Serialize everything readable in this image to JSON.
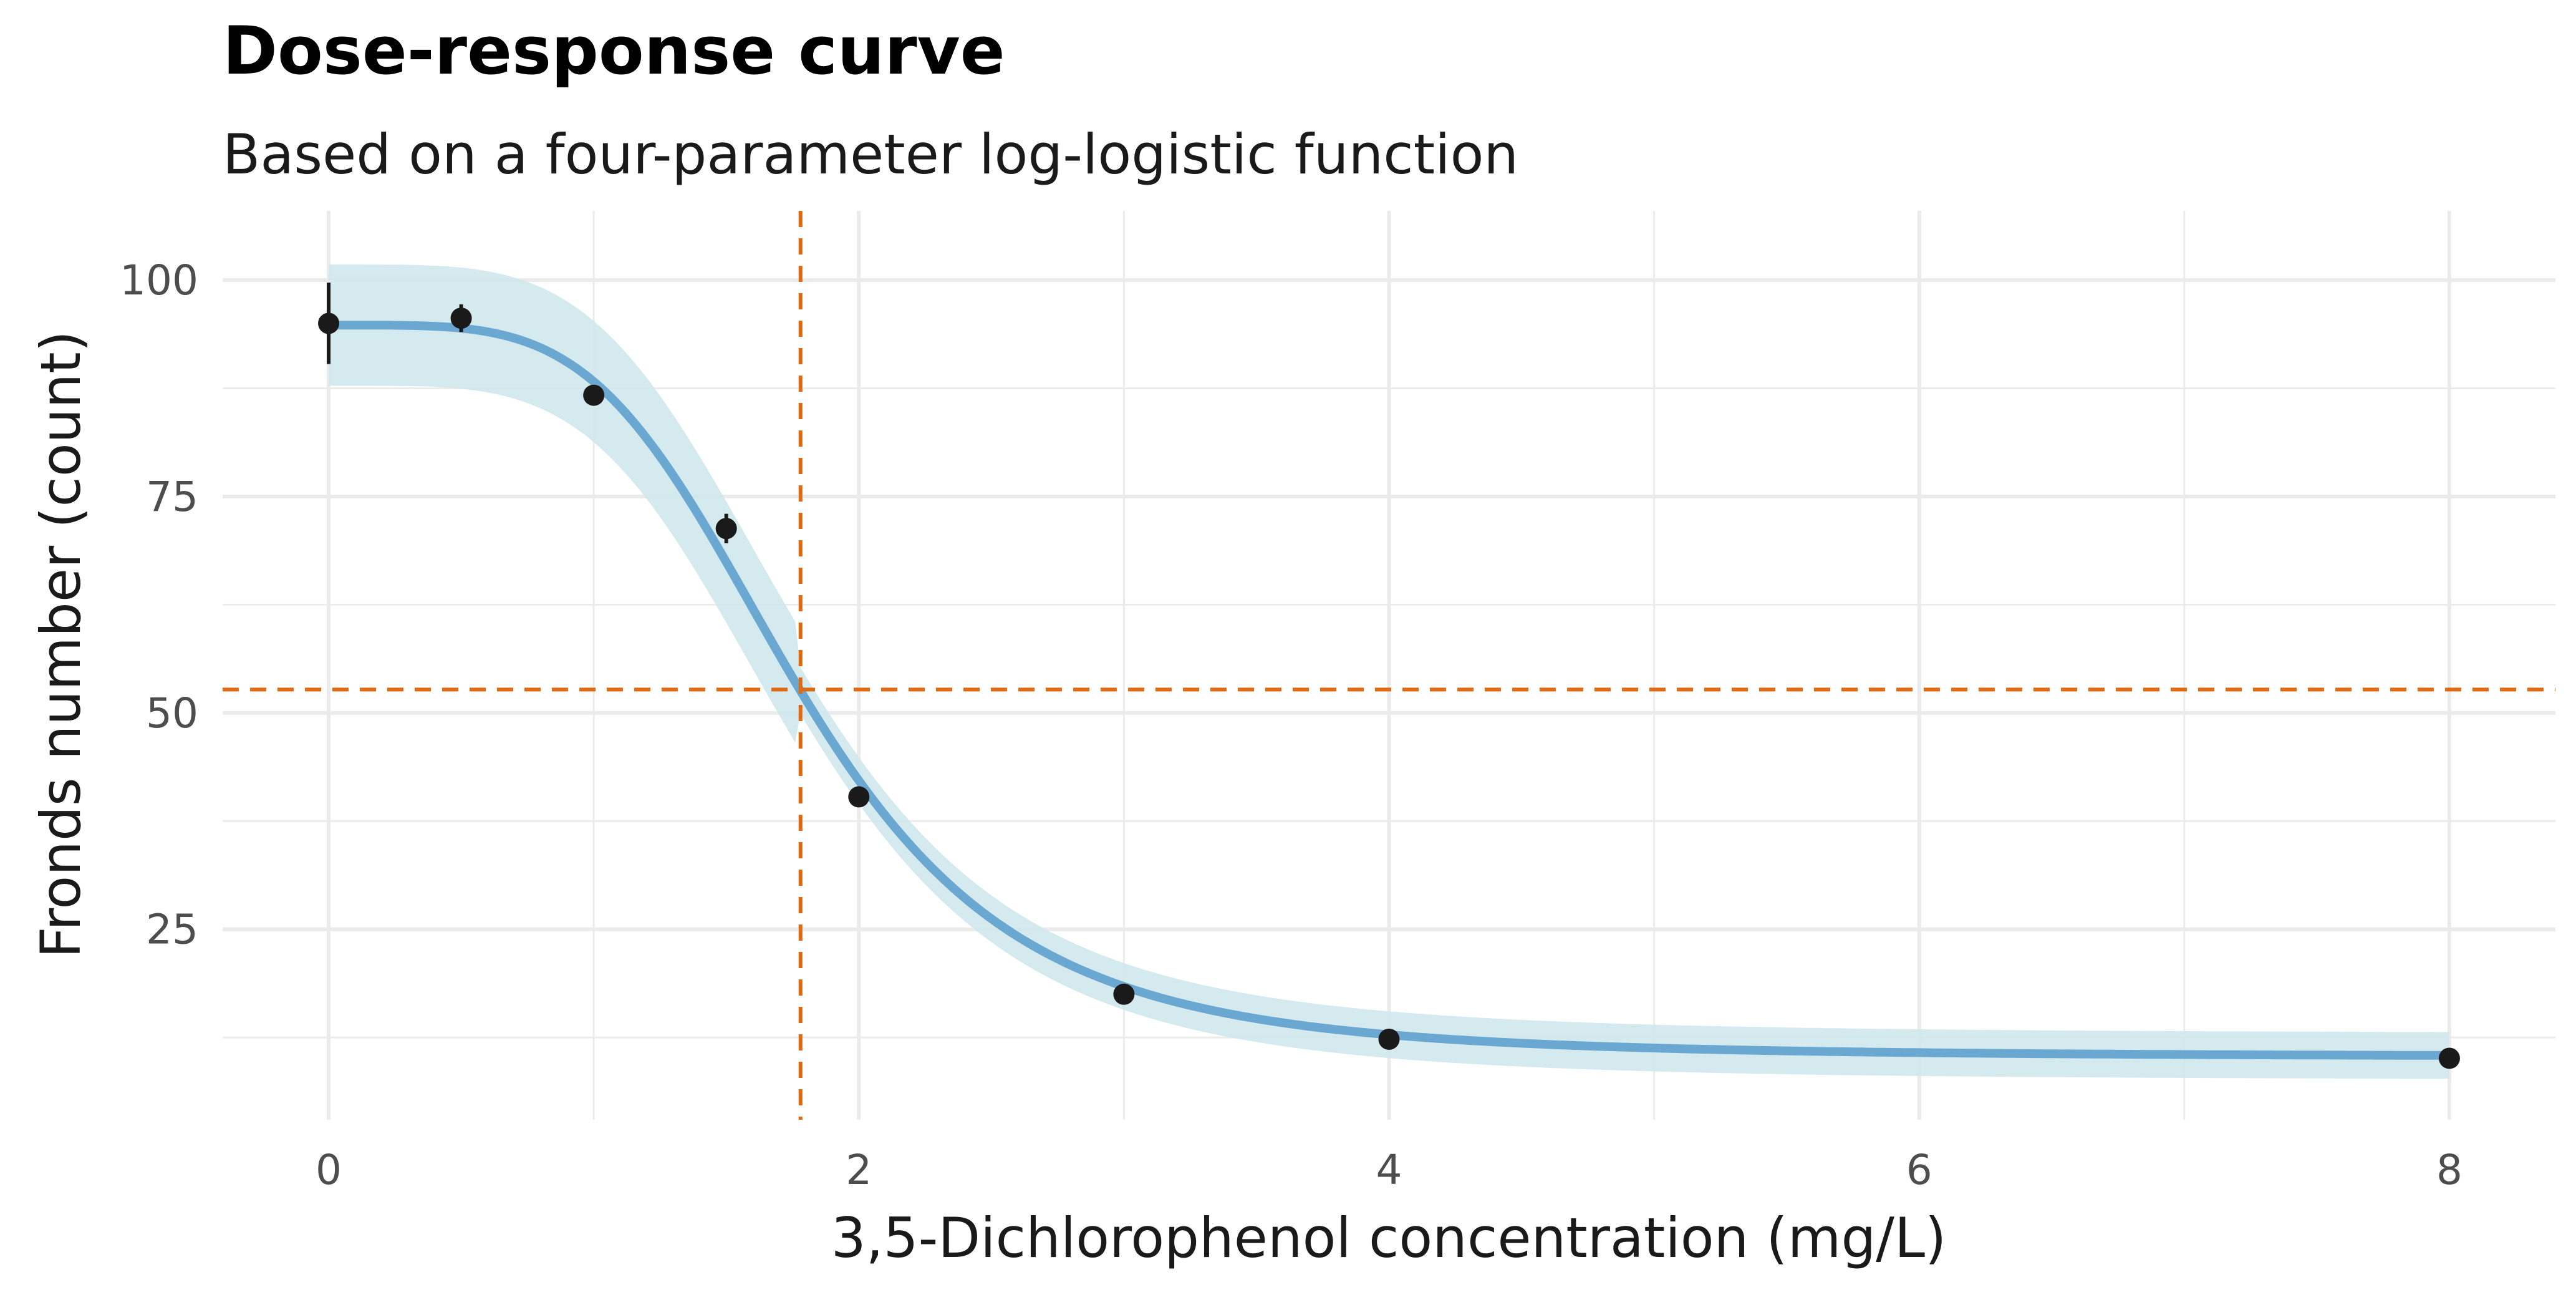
{
  "chart_data": {
    "type": "scatter",
    "title": "Dose-response curve",
    "subtitle": "Based on a four-parameter log-logistic function",
    "xlabel": "3,5-Dichlorophenol concentration (mg/L)",
    "ylabel": "Fronds number (count)",
    "xlim": [
      -0.4,
      8.4
    ],
    "ylim": [
      3,
      108
    ],
    "x_ticks": [
      0,
      2,
      4,
      6,
      8
    ],
    "y_ticks": [
      25,
      50,
      75,
      100
    ],
    "x_tick_labels": [
      "0",
      "2",
      "4",
      "6",
      "8"
    ],
    "y_tick_labels": [
      "25",
      "50",
      "75",
      "100"
    ],
    "grid": true,
    "points": [
      {
        "x": 0,
        "y": 95.0,
        "ymin": 90.3,
        "ymax": 99.7
      },
      {
        "x": 0.5,
        "y": 95.6,
        "ymin": 94.0,
        "ymax": 97.2
      },
      {
        "x": 1,
        "y": 86.7,
        "ymin": 86.0,
        "ymax": 87.4
      },
      {
        "x": 1.5,
        "y": 71.3,
        "ymin": 69.6,
        "ymax": 73.0
      },
      {
        "x": 2,
        "y": 40.3,
        "ymin": 39.6,
        "ymax": 41.0
      },
      {
        "x": 3,
        "y": 17.5,
        "ymin": 16.8,
        "ymax": 18.2
      },
      {
        "x": 4,
        "y": 12.3,
        "ymin": 11.7,
        "ymax": 12.9
      },
      {
        "x": 8,
        "y": 10.1,
        "ymin": 9.5,
        "ymax": 10.7
      }
    ],
    "fitted_curve": {
      "model": "four-parameter log-logistic",
      "b": 4.3,
      "c": 10.3,
      "d": 94.8,
      "e": 1.78,
      "band_halfwidth_max": 7.0,
      "band_halfwidth_mid": 4.8,
      "band_halfwidth_min": 2.7
    },
    "reference_lines": {
      "vertical_x": 1.78,
      "horizontal_y": 52.7
    },
    "colors": {
      "curve": "#6aa8d2",
      "band": "#cfe8ec",
      "points": "#1a1a1a",
      "reference": "#e06a12",
      "grid": "#ebebeb"
    }
  }
}
